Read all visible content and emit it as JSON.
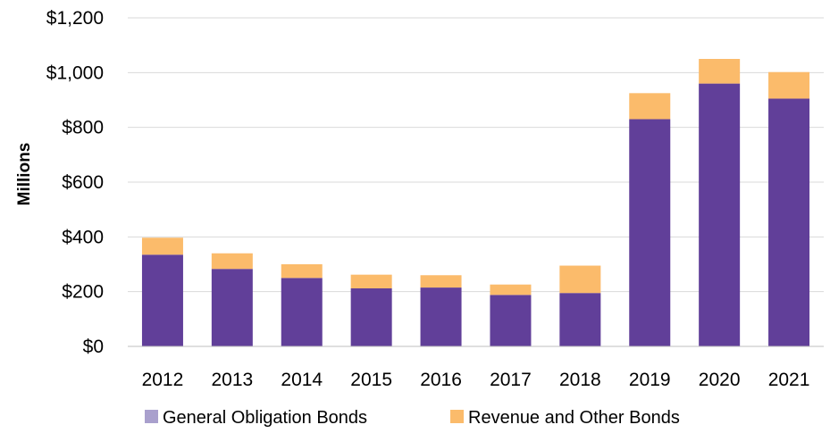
{
  "chart_data": {
    "type": "bar",
    "stacked": true,
    "categories": [
      "2012",
      "2013",
      "2014",
      "2015",
      "2016",
      "2017",
      "2018",
      "2019",
      "2020",
      "2021"
    ],
    "series": [
      {
        "name": "General Obligation Bonds",
        "color": "#613f99",
        "legend_color": "#a9a0cd",
        "values": [
          335,
          283,
          250,
          212,
          215,
          188,
          195,
          830,
          960,
          905
        ]
      },
      {
        "name": "Revenue and Other Bonds",
        "color": "#fbbb6b",
        "values": [
          62,
          57,
          50,
          50,
          45,
          38,
          100,
          95,
          90,
          97
        ]
      }
    ],
    "ylabel": "Millions",
    "ylim": [
      0,
      1200
    ],
    "yticks": [
      "$0",
      "$200",
      "$400",
      "$600",
      "$800",
      "$1,000",
      "$1,200"
    ],
    "ytick_values": [
      0,
      200,
      400,
      600,
      800,
      1000,
      1200
    ],
    "grid": true,
    "gridline_color": "#d9d9d9",
    "legend_position": "bottom"
  }
}
